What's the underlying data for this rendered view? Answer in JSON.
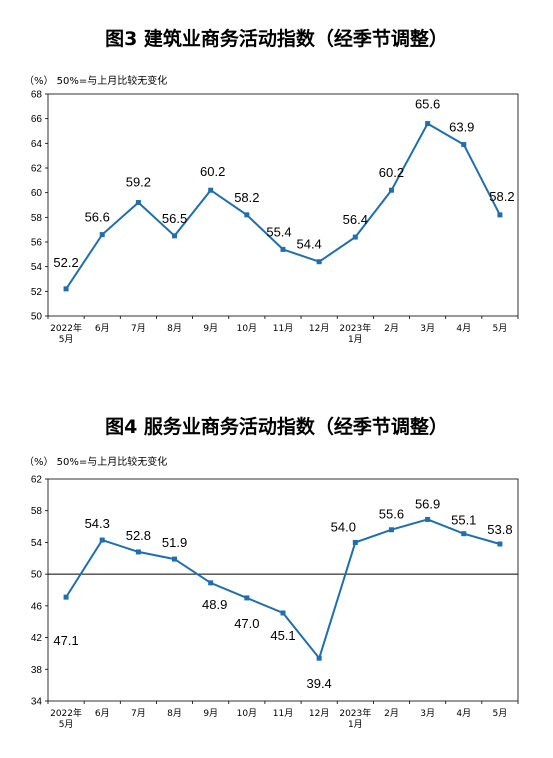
{
  "chart_data": [
    {
      "type": "line",
      "title": "图3  建筑业商务活动指数（经季节调整）",
      "unit_note": "（%）  50%=与上月比较无变化",
      "categories": [
        [
          "2022年",
          "5月"
        ],
        [
          "6月"
        ],
        [
          "7月"
        ],
        [
          "8月"
        ],
        [
          "9月"
        ],
        [
          "10月"
        ],
        [
          "11月"
        ],
        [
          "12月"
        ],
        [
          "2023年",
          "1月"
        ],
        [
          "2月"
        ],
        [
          "3月"
        ],
        [
          "4月"
        ],
        [
          "5月"
        ]
      ],
      "values": [
        52.2,
        56.6,
        59.2,
        56.5,
        60.2,
        58.2,
        55.4,
        54.4,
        56.4,
        60.2,
        65.6,
        63.9,
        58.2
      ],
      "data_labels": [
        "52.2",
        "56.6",
        "59.2",
        "56.5",
        "60.2",
        "58.2",
        "55.4",
        "54.4",
        "56.4",
        "60.2",
        "65.6",
        "63.9",
        "58.2"
      ],
      "yticks": [
        "50",
        "52",
        "54",
        "56",
        "58",
        "60",
        "62",
        "64",
        "66",
        "68"
      ],
      "ylim": [
        50,
        68
      ],
      "xlabel": "",
      "ylabel": "",
      "reference_line": null,
      "grid": false,
      "line_color": "#1F6FAE"
    },
    {
      "type": "line",
      "title": "图4  服务业商务活动指数（经季节调整）",
      "unit_note": "（%）  50%=与上月比较无变化",
      "categories": [
        [
          "2022年",
          "5月"
        ],
        [
          "6月"
        ],
        [
          "7月"
        ],
        [
          "8月"
        ],
        [
          "9月"
        ],
        [
          "10月"
        ],
        [
          "11月"
        ],
        [
          "12月"
        ],
        [
          "2023年",
          "1月"
        ],
        [
          "2月"
        ],
        [
          "3月"
        ],
        [
          "4月"
        ],
        [
          "5月"
        ]
      ],
      "values": [
        47.1,
        54.3,
        52.8,
        51.9,
        48.9,
        47.0,
        45.1,
        39.4,
        54.0,
        55.6,
        56.9,
        55.1,
        53.8
      ],
      "data_labels": [
        "47.1",
        "54.3",
        "52.8",
        "51.9",
        "48.9",
        "47.0",
        "45.1",
        "39.4",
        "54.0",
        "55.6",
        "56.9",
        "55.1",
        "53.8"
      ],
      "yticks": [
        "34",
        "38",
        "42",
        "46",
        "50",
        "54",
        "58",
        "62"
      ],
      "ylim": [
        34,
        62
      ],
      "xlabel": "",
      "ylabel": "",
      "reference_line": 50,
      "grid": false,
      "line_color": "#1F6FAE"
    }
  ]
}
